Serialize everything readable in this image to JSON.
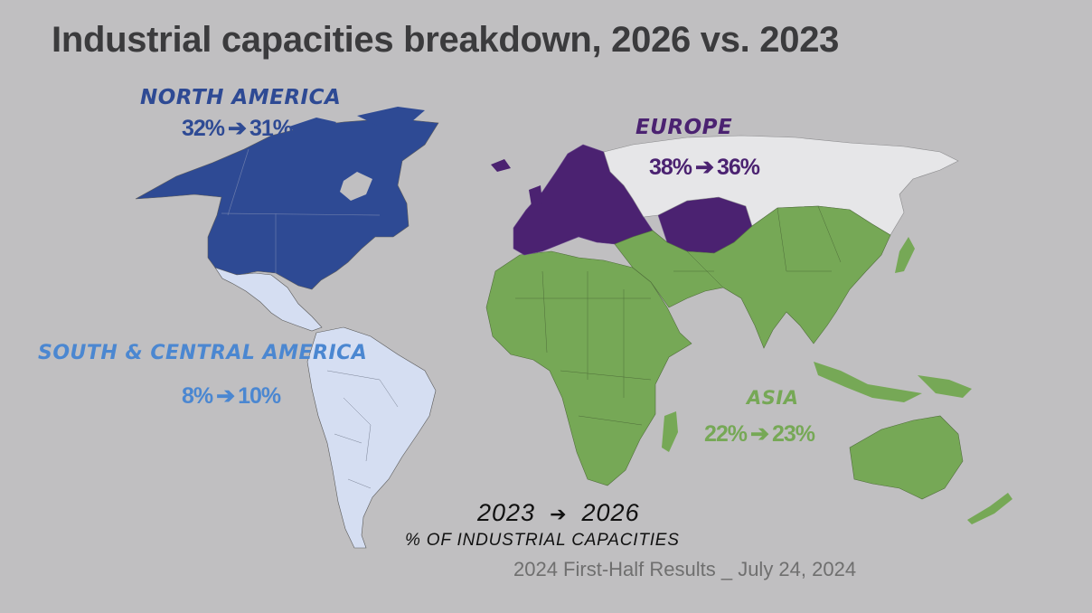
{
  "title": "Industrial capacities breakdown, 2026 vs. 2023",
  "colors": {
    "background": "#c0bfc1",
    "north_america": "#2e4a94",
    "south_central_america": "#d5def2",
    "europe": "#4b2271",
    "asia_africa": "#76a856",
    "russia": "#e6e6e8",
    "borders": "#5a5a5a"
  },
  "regions": {
    "north_america": {
      "name": "NORTH AMERICA",
      "from": "32%",
      "to": "31%"
    },
    "europe": {
      "name": "EUROPE",
      "from": "38%",
      "to": "36%"
    },
    "south_central_america": {
      "name": "SOUTH & CENTRAL AMERICA",
      "from": "8%",
      "to": "10%"
    },
    "asia": {
      "name": "ASIA",
      "from": "22%",
      "to": "23%"
    }
  },
  "legend": {
    "from_year": "2023",
    "to_year": "2026",
    "caption": "% OF INDUSTRIAL CAPACITIES"
  },
  "footer": "2024 First-Half Results _ July 24, 2024",
  "icons": {
    "arrow": "right-arrow-icon"
  }
}
